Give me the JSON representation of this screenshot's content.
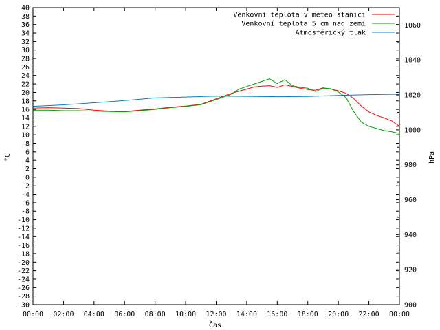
{
  "chart_data": {
    "type": "line",
    "title": "",
    "xlabel": "Čas",
    "ylabel": "°C",
    "y2label": "hPa",
    "x_range_hours": [
      0,
      24
    ],
    "x_ticks": [
      "00:00",
      "02:00",
      "04:00",
      "06:00",
      "08:00",
      "10:00",
      "12:00",
      "14:00",
      "16:00",
      "18:00",
      "20:00",
      "22:00",
      "00:00"
    ],
    "y_range": [
      -30,
      40
    ],
    "y_ticks": [
      "40",
      "38",
      "36",
      "34",
      "32",
      "30",
      "28",
      "26",
      "24",
      "22",
      "20",
      "18",
      "16",
      "14",
      "12",
      "10",
      "8",
      "6",
      "4",
      "2",
      "0",
      "-2",
      "-4",
      "-6",
      "-8",
      "-10",
      "-12",
      "-14",
      "-16",
      "-18",
      "-20",
      "-22",
      "-24",
      "-26",
      "-28",
      "-30"
    ],
    "y2_range": [
      900,
      1070
    ],
    "y2_ticks": [
      "1060",
      "1040",
      "1020",
      "1000",
      "980",
      "960",
      "940",
      "920",
      "900"
    ],
    "grid": false,
    "legend_position": "top-right",
    "series": [
      {
        "name": "Venkovní teplota v meteo stanici",
        "color": "#ff0000",
        "axis": "left",
        "x": [
          0,
          1,
          2,
          3,
          4,
          5,
          6,
          7,
          8,
          9,
          10,
          11,
          12,
          13,
          13.5,
          14,
          14.5,
          15,
          15.5,
          16,
          16.5,
          17,
          17.5,
          18,
          18.5,
          19,
          19.5,
          20,
          20.5,
          21,
          21.5,
          22,
          22.5,
          23,
          23.5,
          24
        ],
        "y": [
          16.3,
          16.4,
          16.3,
          16.2,
          15.8,
          15.6,
          15.5,
          15.8,
          16.1,
          16.5,
          16.8,
          17.2,
          18.5,
          19.8,
          20.3,
          20.8,
          21.3,
          21.5,
          21.6,
          21.2,
          21.8,
          21.4,
          21.0,
          20.7,
          20.5,
          21.1,
          20.8,
          20.4,
          19.8,
          18.6,
          16.8,
          15.4,
          14.6,
          14.0,
          13.3,
          12.0
        ]
      },
      {
        "name": "Venkovní teplota 5 cm nad zemí",
        "color": "#00a000",
        "axis": "left",
        "x": [
          0,
          1,
          2,
          3,
          4,
          5,
          6,
          7,
          8,
          9,
          10,
          11,
          12,
          13,
          13.5,
          14,
          14.5,
          15,
          15.5,
          16,
          16.5,
          17,
          17.5,
          18,
          18.5,
          19,
          19.5,
          20,
          20.5,
          21,
          21.5,
          22,
          22.5,
          23,
          23.5,
          24
        ],
        "y": [
          15.8,
          15.8,
          15.7,
          15.7,
          15.6,
          15.5,
          15.4,
          15.7,
          16.0,
          16.4,
          16.7,
          17.1,
          18.3,
          19.6,
          20.8,
          21.4,
          22.0,
          22.6,
          23.2,
          22.1,
          23.0,
          21.6,
          21.2,
          21.0,
          20.2,
          21.0,
          20.9,
          20.1,
          18.8,
          15.5,
          13.0,
          12.0,
          11.5,
          11.0,
          10.7,
          10.3
        ]
      },
      {
        "name": "Atmosférický tlak",
        "color": "#0080c0",
        "axis": "right",
        "x": [
          0,
          2,
          4,
          6,
          8,
          10,
          12,
          14,
          16,
          18,
          20,
          22,
          24
        ],
        "y": [
          1013.5,
          1014.3,
          1015.5,
          1016.8,
          1018.3,
          1018.8,
          1019.3,
          1019.2,
          1019.0,
          1019.1,
          1019.7,
          1020.2,
          1020.4
        ]
      }
    ]
  }
}
